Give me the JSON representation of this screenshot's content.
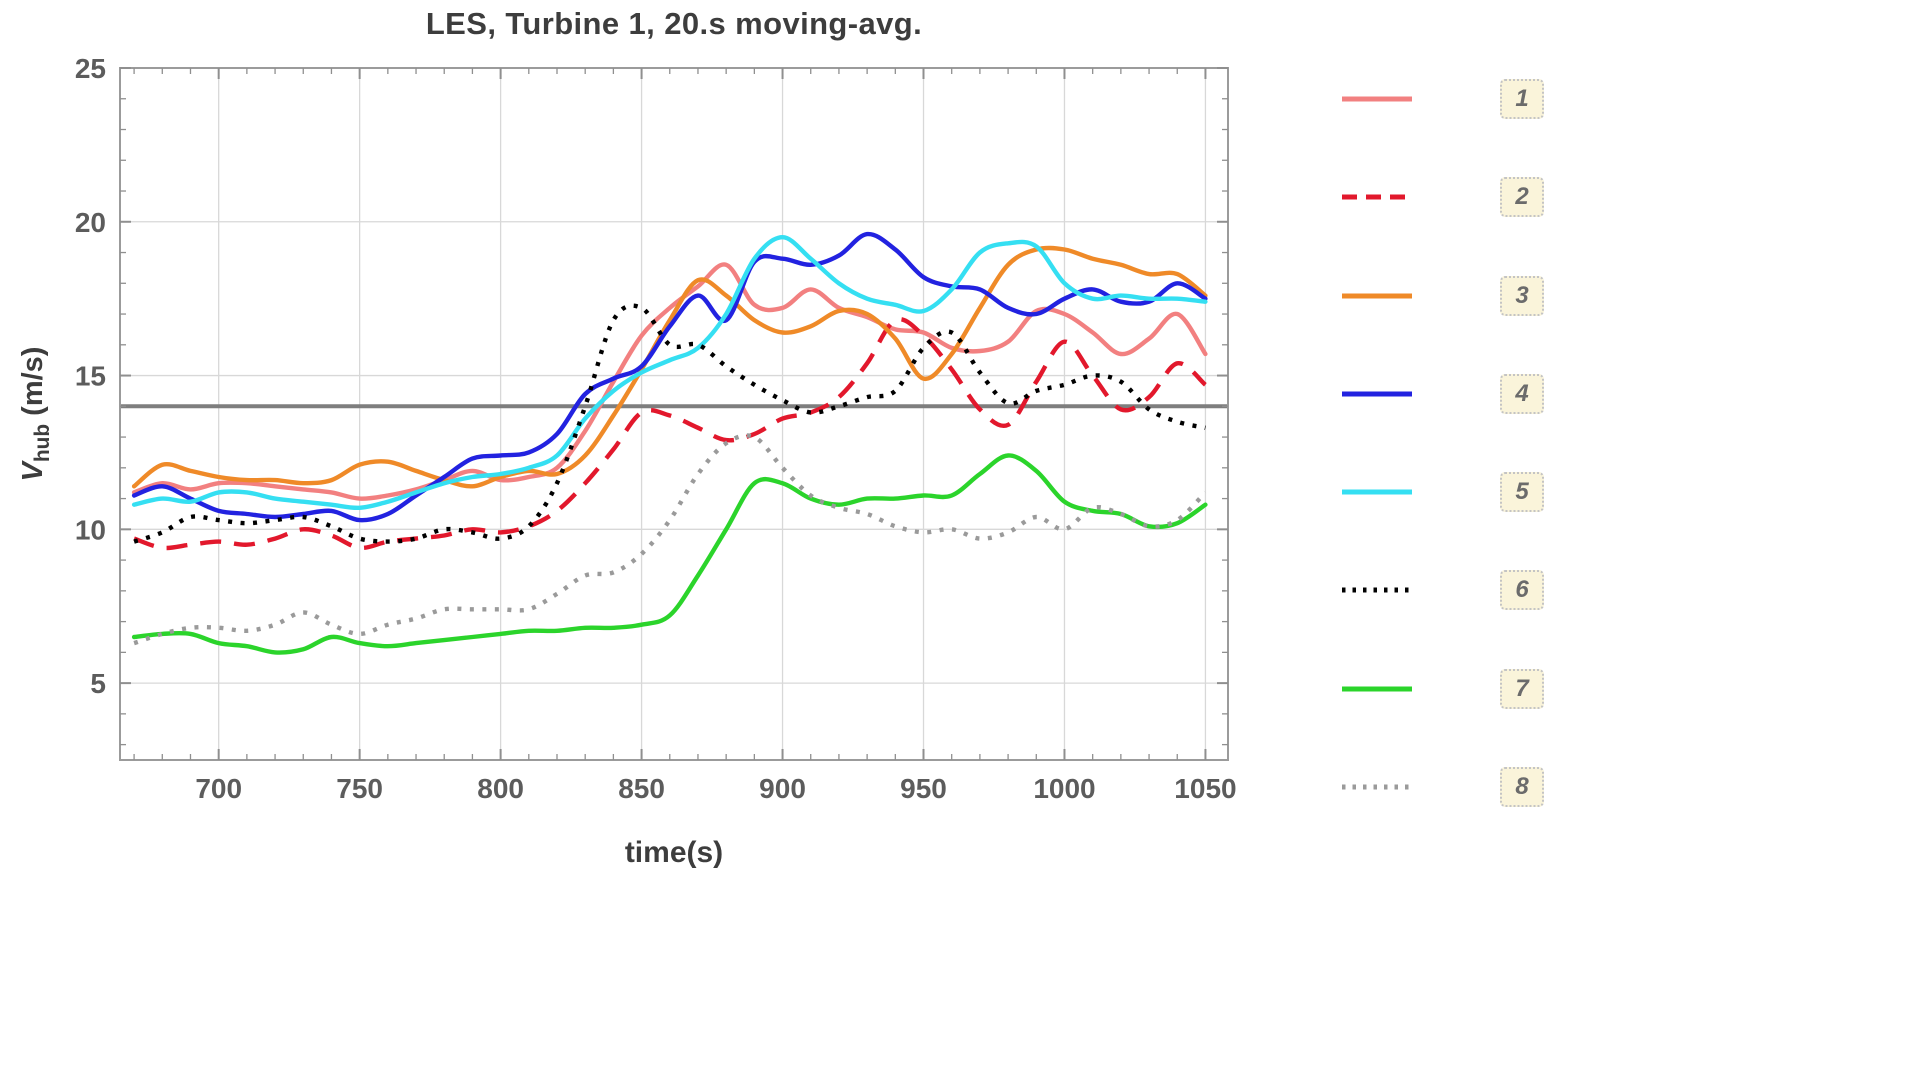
{
  "chart": {
    "title": "LES, Turbine 1, 20.s moving-avg.",
    "xlabel": "time(s)",
    "ylabel_var": "V",
    "ylabel_sub": "hub",
    "ylabel_units": "(m/s)"
  },
  "chart_data": {
    "type": "line",
    "title": "LES, Turbine 1, 20.s moving-avg.",
    "xlabel": "time(s)",
    "ylabel": "V_hub (m/s)",
    "xlim": [
      665,
      1058
    ],
    "ylim": [
      2.5,
      25
    ],
    "x_ticks": [
      700,
      750,
      800,
      850,
      900,
      950,
      1000,
      1050
    ],
    "y_ticks": [
      5,
      10,
      15,
      20,
      25
    ],
    "grid": true,
    "grid_color": "#d8d8d8",
    "frame_color": "#9b9b9b",
    "reference_line_y": 14,
    "reference_line_color": "#7e7e7e",
    "legend_position": "right-outside",
    "x": [
      670,
      680,
      690,
      700,
      710,
      720,
      730,
      740,
      750,
      760,
      770,
      780,
      790,
      800,
      810,
      820,
      830,
      840,
      850,
      860,
      870,
      880,
      890,
      900,
      910,
      920,
      930,
      940,
      950,
      960,
      970,
      980,
      990,
      1000,
      1010,
      1020,
      1030,
      1040,
      1050
    ],
    "series": [
      {
        "name": "1",
        "color": "#f28080",
        "style": "solid",
        "values": [
          11.2,
          11.5,
          11.3,
          11.5,
          11.5,
          11.4,
          11.3,
          11.2,
          11.0,
          11.1,
          11.3,
          11.6,
          11.9,
          11.6,
          11.7,
          12.0,
          13.2,
          14.8,
          16.3,
          17.2,
          17.9,
          18.6,
          17.3,
          17.2,
          17.8,
          17.2,
          16.9,
          16.5,
          16.4,
          15.9,
          15.8,
          16.1,
          17.1,
          17.0,
          16.4,
          15.7,
          16.2,
          17.0,
          15.7
        ]
      },
      {
        "name": "2",
        "color": "#e2182c",
        "style": "dashed",
        "values": [
          9.7,
          9.4,
          9.5,
          9.6,
          9.5,
          9.7,
          10.0,
          9.8,
          9.4,
          9.6,
          9.7,
          9.8,
          10.0,
          9.9,
          10.1,
          10.6,
          11.5,
          12.6,
          13.8,
          13.7,
          13.3,
          12.9,
          13.1,
          13.6,
          13.8,
          14.3,
          15.4,
          16.8,
          16.3,
          15.2,
          13.9,
          13.4,
          14.8,
          16.1,
          15.0,
          13.9,
          14.3,
          15.4,
          14.7
        ]
      },
      {
        "name": "3",
        "color": "#ef8a28",
        "style": "solid",
        "values": [
          11.4,
          12.1,
          11.9,
          11.7,
          11.6,
          11.6,
          11.5,
          11.6,
          12.1,
          12.2,
          11.9,
          11.6,
          11.4,
          11.7,
          11.9,
          11.8,
          12.4,
          13.7,
          15.2,
          16.8,
          18.1,
          17.6,
          16.8,
          16.4,
          16.6,
          17.1,
          17.0,
          16.2,
          14.9,
          15.7,
          17.2,
          18.6,
          19.1,
          19.1,
          18.8,
          18.6,
          18.3,
          18.3,
          17.6
        ]
      },
      {
        "name": "4",
        "color": "#2222e0",
        "style": "solid",
        "values": [
          11.1,
          11.4,
          11.0,
          10.6,
          10.5,
          10.4,
          10.5,
          10.6,
          10.3,
          10.5,
          11.1,
          11.7,
          12.3,
          12.4,
          12.5,
          13.1,
          14.4,
          14.9,
          15.3,
          16.6,
          17.6,
          16.8,
          18.7,
          18.8,
          18.6,
          18.9,
          19.6,
          19.1,
          18.2,
          17.9,
          17.8,
          17.2,
          17.0,
          17.5,
          17.8,
          17.4,
          17.4,
          18.0,
          17.5
        ]
      },
      {
        "name": "5",
        "color": "#35dff2",
        "style": "solid",
        "values": [
          10.8,
          11.0,
          10.9,
          11.2,
          11.2,
          11.0,
          10.9,
          10.8,
          10.7,
          10.9,
          11.2,
          11.5,
          11.7,
          11.8,
          12.0,
          12.4,
          13.6,
          14.5,
          15.1,
          15.5,
          15.9,
          17.0,
          18.8,
          19.5,
          18.8,
          18.0,
          17.5,
          17.3,
          17.1,
          17.8,
          19.0,
          19.3,
          19.2,
          18.0,
          17.5,
          17.6,
          17.5,
          17.5,
          17.4
        ]
      },
      {
        "name": "6",
        "color": "#000000",
        "style": "dotted",
        "values": [
          9.6,
          9.9,
          10.4,
          10.3,
          10.2,
          10.3,
          10.4,
          10.1,
          9.7,
          9.6,
          9.7,
          10.0,
          9.9,
          9.7,
          10.1,
          11.5,
          14.0,
          16.8,
          17.2,
          16.0,
          16.0,
          15.3,
          14.7,
          14.2,
          13.8,
          14.0,
          14.3,
          14.5,
          15.9,
          16.4,
          15.1,
          14.1,
          14.5,
          14.7,
          15.0,
          14.8,
          13.9,
          13.5,
          13.3
        ]
      },
      {
        "name": "7",
        "color": "#2bd42b",
        "style": "solid",
        "values": [
          6.5,
          6.6,
          6.6,
          6.3,
          6.2,
          6.0,
          6.1,
          6.5,
          6.3,
          6.2,
          6.3,
          6.4,
          6.5,
          6.6,
          6.7,
          6.7,
          6.8,
          6.8,
          6.9,
          7.2,
          8.5,
          10.0,
          11.5,
          11.5,
          11.0,
          10.8,
          11.0,
          11.0,
          11.1,
          11.1,
          11.8,
          12.4,
          11.9,
          10.9,
          10.6,
          10.5,
          10.1,
          10.2,
          10.8
        ]
      },
      {
        "name": "8",
        "color": "#9a9a9a",
        "style": "dotted",
        "values": [
          6.3,
          6.6,
          6.8,
          6.8,
          6.7,
          6.9,
          7.3,
          6.9,
          6.6,
          6.9,
          7.1,
          7.4,
          7.4,
          7.4,
          7.4,
          7.9,
          8.5,
          8.6,
          9.2,
          10.3,
          11.8,
          12.8,
          13.0,
          12.0,
          11.1,
          10.7,
          10.5,
          10.1,
          9.9,
          10.0,
          9.7,
          9.9,
          10.4,
          10.0,
          10.7,
          10.5,
          10.1,
          10.3,
          11.2
        ]
      }
    ]
  },
  "legend": {
    "entries": [
      "1",
      "2",
      "3",
      "4",
      "5",
      "6",
      "7",
      "8"
    ],
    "key_background": "#faf4da"
  }
}
